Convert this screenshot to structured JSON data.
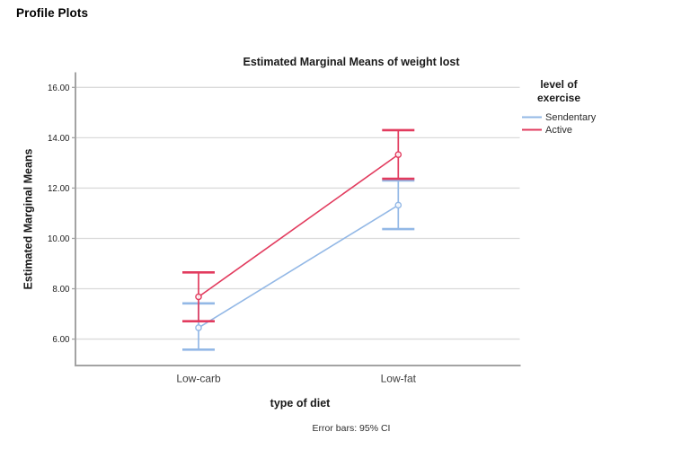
{
  "page": {
    "heading": "Profile Plots"
  },
  "chart_data": {
    "type": "line",
    "title": "Estimated Marginal Means of weight lost",
    "xlabel": "type of diet",
    "ylabel": "Estimated Marginal Means",
    "footnote": "Error bars: 95% CI",
    "categories": [
      "Low-carb",
      "Low-fat"
    ],
    "ytick_values": [
      6,
      8,
      10,
      12,
      14,
      16
    ],
    "ytick_labels": [
      "6.00",
      "8.00",
      "10.00",
      "12.00",
      "14.00",
      "16.00"
    ],
    "ylim": [
      4.95,
      16.6
    ],
    "grid": true,
    "error_bars": "95% CI",
    "legend": {
      "position": "top-right",
      "title_lines": [
        "level of",
        "exercise"
      ]
    },
    "series": [
      {
        "name": "Sendentary",
        "color": "#93b8e6",
        "values": [
          6.45,
          11.32
        ],
        "ci_low": [
          5.58,
          10.37
        ],
        "ci_high": [
          7.42,
          12.3
        ]
      },
      {
        "name": "Active",
        "color": "#e23b5e",
        "values": [
          7.68,
          13.33
        ],
        "ci_low": [
          6.71,
          12.37
        ],
        "ci_high": [
          8.65,
          14.3
        ]
      }
    ]
  }
}
